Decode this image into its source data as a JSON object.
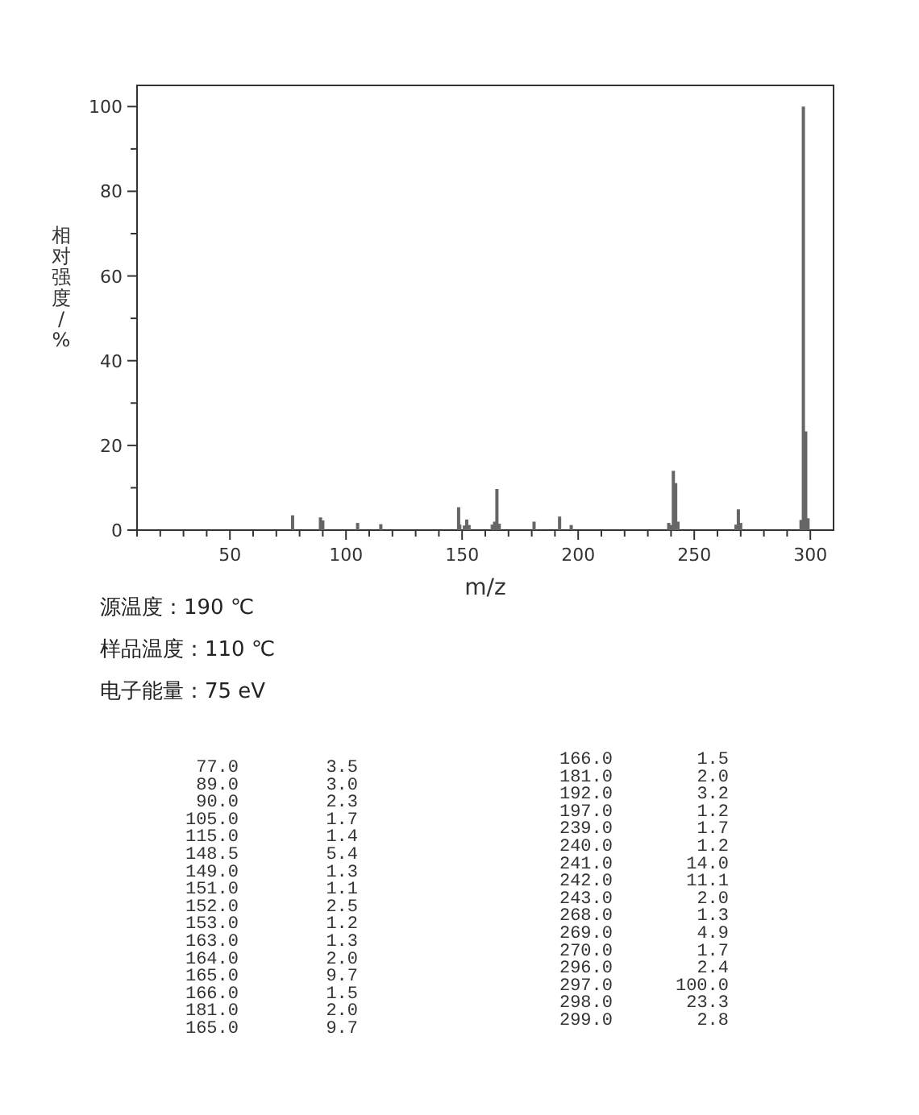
{
  "chart_data": [
    {
      "type": "bar",
      "xlabel": "m/z",
      "ylabel": "相对强度/%",
      "x": [
        77,
        89,
        90,
        105,
        115,
        148.5,
        149,
        151,
        152,
        153,
        163,
        164,
        165,
        166,
        181,
        192,
        197,
        239,
        240,
        241,
        242,
        243,
        268,
        269,
        270,
        296,
        297,
        298,
        299
      ],
      "values": [
        3.5,
        3.0,
        2.3,
        1.7,
        1.4,
        5.4,
        1.3,
        1.1,
        2.5,
        1.2,
        1.3,
        2.0,
        9.7,
        1.5,
        2.0,
        3.2,
        1.2,
        1.7,
        1.2,
        14.0,
        11.1,
        2.0,
        1.3,
        4.9,
        1.7,
        2.4,
        100.0,
        23.3,
        2.8
      ],
      "color": "#666666",
      "xlim": [
        10,
        310
      ],
      "ylim": [
        0,
        105
      ],
      "xticks": [
        {
          "value": 10,
          "label": null
        },
        {
          "value": 20,
          "label": null
        },
        {
          "value": 30,
          "label": null
        },
        {
          "value": 40,
          "label": null
        },
        50,
        {
          "value": 60,
          "label": null
        },
        {
          "value": 70,
          "label": null
        },
        {
          "value": 80,
          "label": null
        },
        {
          "value": 90,
          "label": null
        },
        100,
        {
          "value": 110,
          "label": null
        },
        {
          "value": 120,
          "label": null
        },
        {
          "value": 130,
          "label": null
        },
        {
          "value": 140,
          "label": null
        },
        150,
        {
          "value": 160,
          "label": null
        },
        {
          "value": 170,
          "label": null
        },
        {
          "value": 180,
          "label": null
        },
        {
          "value": 190,
          "label": null
        },
        200,
        {
          "value": 210,
          "label": null
        },
        {
          "value": 220,
          "label": null
        },
        {
          "value": 230,
          "label": null
        },
        {
          "value": 240,
          "label": null
        },
        250,
        {
          "value": 260,
          "label": null
        },
        {
          "value": 270,
          "label": null
        },
        {
          "value": 280,
          "label": null
        },
        {
          "value": 290,
          "label": null
        },
        300
      ],
      "yticks": [
        0,
        {
          "value": 10,
          "label": null
        },
        20,
        {
          "value": 30,
          "label": null
        },
        40,
        {
          "value": 50,
          "label": null
        },
        60,
        {
          "value": 70,
          "label": null
        },
        80,
        {
          "value": 90,
          "label": null
        },
        100
      ],
      "annotations": [
        "源温度：190 ℃",
        "样品温度：110 ℃",
        "电子能量：75 eV"
      ]
    },
    {
      "type": "other",
      "categories": [
        "77.0",
        "89.0",
        "90.0",
        "105.0",
        "115.0",
        "148.5",
        "149.0",
        "151.0",
        "152.0",
        "153.0",
        "163.0",
        "164.0",
        "165.0",
        "166.0",
        "181.0",
        "165.0",
        "166.0",
        "181.0",
        "192.0",
        "197.0",
        "239.0",
        "240.0",
        "241.0",
        "242.0",
        "243.0",
        "268.0",
        "269.0",
        "270.0",
        "296.0",
        "297.0",
        "298.0",
        "299.0"
      ],
      "value_labels": [
        "3.5",
        "3.0",
        "2.3",
        "1.7",
        "1.4",
        "5.4",
        "1.3",
        "1.1",
        "2.5",
        "1.2",
        "1.3",
        "2.0",
        "9.7",
        "1.5",
        "2.0",
        "9.7",
        "1.5",
        "2.0",
        "3.2",
        "1.2",
        "1.7",
        "1.2",
        "14.0",
        "11.1",
        "2.0",
        "1.3",
        "4.9",
        "1.7",
        "2.4",
        "100.0",
        "23.3",
        "2.8"
      ]
    }
  ]
}
